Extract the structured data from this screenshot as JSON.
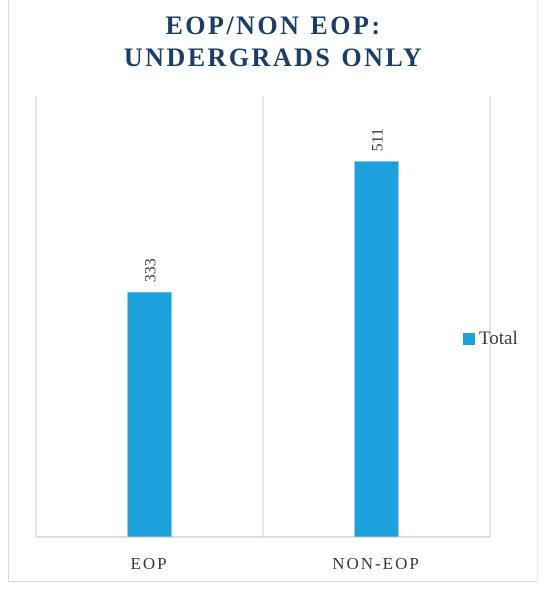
{
  "chart_data": {
    "type": "bar",
    "title_lines": [
      "EOP/NON EOP:",
      "UNDERGRADS ONLY"
    ],
    "categories": [
      "EOP",
      "NON-EOP"
    ],
    "series": [
      {
        "name": "Total",
        "values": [
          333,
          511
        ],
        "color": "#1ca1dc"
      }
    ],
    "data_labels": [
      "333",
      "511"
    ],
    "ylim": [
      0,
      600
    ],
    "grid": "vertical category separators",
    "legend_position": "right",
    "xlabel": "",
    "ylabel": ""
  }
}
